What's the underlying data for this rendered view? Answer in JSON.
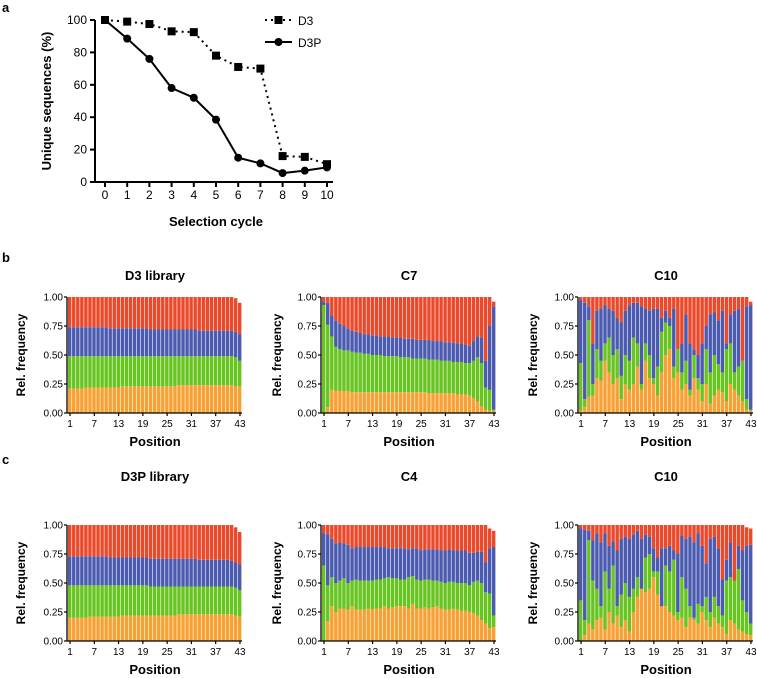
{
  "panel_labels": {
    "a": "a",
    "b": "b",
    "c": "c"
  },
  "chart_data": [
    {
      "type": "line",
      "panel": "a",
      "title": "",
      "xlabel": "Selection cycle",
      "ylabel": "Unique sequences (%)",
      "x": [
        0,
        1,
        2,
        3,
        4,
        5,
        6,
        7,
        8,
        9,
        10
      ],
      "xticks": [
        "0",
        "1",
        "2",
        "3",
        "4",
        "5",
        "6",
        "7",
        "8",
        "9",
        "10"
      ],
      "yticks": [
        "0",
        "20",
        "40",
        "60",
        "80",
        "100"
      ],
      "ylim": [
        0,
        100
      ],
      "legend_position": "top-right",
      "series": [
        {
          "name": "D3",
          "style": "dotted",
          "marker": "square",
          "values": [
            100,
            99,
            97.5,
            93,
            92.5,
            78,
            71,
            70,
            16,
            15.5,
            11
          ]
        },
        {
          "name": "D3P",
          "style": "solid",
          "marker": "circle",
          "values": [
            100,
            88.5,
            76,
            58,
            52,
            38.5,
            15,
            11.5,
            5.5,
            7,
            9
          ]
        }
      ]
    },
    {
      "type": "bar",
      "stacked": true,
      "panel": "b",
      "title": "D3 library",
      "xlabel": "Position",
      "ylabel": "Rel. frequency",
      "xticks": [
        "1",
        "7",
        "13",
        "19",
        "25",
        "31",
        "37",
        "43"
      ],
      "yticks": [
        "0.00",
        "0.25",
        "0.50",
        "0.75",
        "1.00"
      ],
      "ylim": [
        0,
        1
      ],
      "layers": [
        "orange",
        "green",
        "blue",
        "red"
      ],
      "orange_top": [
        0.21,
        0.21,
        0.21,
        0.21,
        0.22,
        0.22,
        0.22,
        0.22,
        0.22,
        0.22,
        0.22,
        0.22,
        0.22,
        0.23,
        0.23,
        0.23,
        0.23,
        0.23,
        0.23,
        0.23,
        0.23,
        0.23,
        0.23,
        0.23,
        0.23,
        0.23,
        0.23,
        0.24,
        0.24,
        0.24,
        0.24,
        0.24,
        0.24,
        0.24,
        0.24,
        0.24,
        0.24,
        0.24,
        0.24,
        0.24,
        0.24,
        0.23,
        0.23
      ],
      "green_top": [
        0.49,
        0.49,
        0.49,
        0.49,
        0.49,
        0.49,
        0.49,
        0.49,
        0.49,
        0.49,
        0.49,
        0.49,
        0.49,
        0.49,
        0.49,
        0.49,
        0.49,
        0.49,
        0.49,
        0.49,
        0.49,
        0.49,
        0.49,
        0.49,
        0.49,
        0.49,
        0.49,
        0.49,
        0.49,
        0.49,
        0.49,
        0.49,
        0.49,
        0.49,
        0.49,
        0.49,
        0.49,
        0.49,
        0.49,
        0.49,
        0.49,
        0.48,
        0.45
      ],
      "blue_top": [
        0.74,
        0.74,
        0.74,
        0.74,
        0.74,
        0.74,
        0.74,
        0.74,
        0.74,
        0.74,
        0.73,
        0.73,
        0.73,
        0.73,
        0.73,
        0.73,
        0.73,
        0.73,
        0.73,
        0.73,
        0.72,
        0.72,
        0.72,
        0.72,
        0.72,
        0.72,
        0.72,
        0.72,
        0.72,
        0.72,
        0.72,
        0.72,
        0.71,
        0.71,
        0.71,
        0.71,
        0.71,
        0.71,
        0.71,
        0.71,
        0.71,
        0.7,
        0.68
      ],
      "total": [
        1,
        1,
        1,
        1,
        1,
        1,
        1,
        1,
        1,
        1,
        1,
        1,
        1,
        1,
        1,
        1,
        1,
        1,
        1,
        1,
        1,
        1,
        1,
        1,
        1,
        1,
        1,
        1,
        1,
        1,
        1,
        1,
        1,
        1,
        1,
        1,
        1,
        1,
        1,
        1,
        1,
        0.99,
        0.95
      ]
    },
    {
      "type": "bar",
      "stacked": true,
      "panel": "b",
      "title": "C7",
      "xlabel": "Position",
      "ylabel": "Rel. frequency",
      "xticks": [
        "1",
        "7",
        "13",
        "19",
        "25",
        "31",
        "37",
        "43"
      ],
      "yticks": [
        "0.00",
        "0.25",
        "0.50",
        "0.75",
        "1.00"
      ],
      "ylim": [
        0,
        1
      ],
      "layers": [
        "orange",
        "green",
        "blue",
        "red"
      ],
      "orange_top": [
        0,
        0.05,
        0.2,
        0.19,
        0.19,
        0.19,
        0.19,
        0.18,
        0.18,
        0.18,
        0.18,
        0.18,
        0.18,
        0.18,
        0.18,
        0.18,
        0.18,
        0.18,
        0.18,
        0.18,
        0.18,
        0.18,
        0.18,
        0.18,
        0.18,
        0.18,
        0.17,
        0.17,
        0.17,
        0.17,
        0.17,
        0.17,
        0.17,
        0.16,
        0.16,
        0.16,
        0.15,
        0.13,
        0.1,
        0.06,
        0.03,
        0.02,
        0.02
      ],
      "green_top": [
        0.93,
        0.76,
        0.66,
        0.57,
        0.55,
        0.54,
        0.54,
        0.53,
        0.52,
        0.52,
        0.51,
        0.51,
        0.5,
        0.5,
        0.5,
        0.49,
        0.49,
        0.49,
        0.49,
        0.48,
        0.48,
        0.48,
        0.47,
        0.47,
        0.47,
        0.47,
        0.46,
        0.46,
        0.46,
        0.45,
        0.45,
        0.45,
        0.44,
        0.44,
        0.44,
        0.43,
        0.43,
        0.45,
        0.48,
        0.43,
        0.22,
        0.2,
        0.03
      ],
      "blue_top": [
        0.96,
        0.95,
        0.84,
        0.8,
        0.77,
        0.75,
        0.73,
        0.71,
        0.7,
        0.69,
        0.68,
        0.68,
        0.67,
        0.67,
        0.66,
        0.66,
        0.66,
        0.65,
        0.65,
        0.65,
        0.64,
        0.64,
        0.64,
        0.63,
        0.63,
        0.63,
        0.63,
        0.62,
        0.62,
        0.62,
        0.61,
        0.61,
        0.61,
        0.6,
        0.6,
        0.59,
        0.58,
        0.62,
        0.66,
        0.65,
        0.45,
        0.75,
        0.92
      ],
      "total": [
        1,
        1,
        1,
        1,
        1,
        1,
        1,
        1,
        1,
        1,
        1,
        1,
        1,
        1,
        1,
        1,
        1,
        1,
        1,
        1,
        1,
        1,
        1,
        1,
        1,
        1,
        1,
        1,
        1,
        1,
        1,
        1,
        1,
        1,
        1,
        1,
        1,
        1,
        1,
        1,
        1,
        1,
        0.96
      ]
    },
    {
      "type": "bar",
      "stacked": true,
      "panel": "b",
      "title": "C10",
      "xlabel": "Position",
      "ylabel": "Rel. frequency",
      "xticks": [
        "1",
        "7",
        "13",
        "19",
        "25",
        "31",
        "37",
        "43"
      ],
      "yticks": [
        "0.00",
        "0.25",
        "0.50",
        "0.75",
        "1.00"
      ],
      "ylim": [
        0,
        1
      ],
      "layers": [
        "orange",
        "green",
        "blue",
        "red"
      ],
      "orange_top": [
        0.02,
        0.05,
        0.14,
        0.15,
        0.3,
        0.28,
        0.45,
        0.35,
        0.25,
        0.3,
        0.12,
        0.25,
        0.2,
        0.25,
        0.4,
        0.2,
        0.45,
        0.3,
        0.25,
        0.15,
        0.35,
        0.5,
        0.55,
        0.3,
        0.35,
        0.2,
        0.25,
        0.15,
        0.3,
        0.2,
        0.1,
        0.25,
        0.08,
        0.15,
        0.2,
        0.18,
        0.1,
        0.25,
        0.2,
        0.15,
        0.1,
        0.03,
        0.02
      ],
      "green_top": [
        0.43,
        0.12,
        0.8,
        0.25,
        0.55,
        0.45,
        0.6,
        0.65,
        0.5,
        0.55,
        0.32,
        0.5,
        0.45,
        0.65,
        0.6,
        0.25,
        0.6,
        0.5,
        0.3,
        0.4,
        0.7,
        0.78,
        0.75,
        0.4,
        0.55,
        0.35,
        0.45,
        0.2,
        0.5,
        0.3,
        0.25,
        0.55,
        0.35,
        0.5,
        0.42,
        0.35,
        0.55,
        0.6,
        0.35,
        0.4,
        0.45,
        0.12,
        0.03
      ],
      "blue_top": [
        0.98,
        0.95,
        0.92,
        0.6,
        0.88,
        0.9,
        0.93,
        0.9,
        0.88,
        0.82,
        0.78,
        0.88,
        0.93,
        0.95,
        0.95,
        0.92,
        0.9,
        0.88,
        0.9,
        0.9,
        0.82,
        0.88,
        0.82,
        0.9,
        0.55,
        0.6,
        0.85,
        0.6,
        0.55,
        0.5,
        0.6,
        0.75,
        0.85,
        0.87,
        0.8,
        0.88,
        0.6,
        0.85,
        0.88,
        0.9,
        0.45,
        0.92,
        0.93
      ],
      "total": [
        1,
        1,
        1,
        1,
        1,
        1,
        1,
        1,
        1,
        1,
        1,
        1,
        1,
        1,
        1,
        1,
        1,
        1,
        1,
        1,
        1,
        1,
        1,
        1,
        1,
        1,
        1,
        1,
        1,
        1,
        1,
        1,
        1,
        1,
        1,
        1,
        1,
        1,
        1,
        1,
        1,
        1,
        0.96
      ]
    },
    {
      "type": "bar",
      "stacked": true,
      "panel": "c",
      "title": "D3P library",
      "xlabel": "Position",
      "ylabel": "Rel. frequency",
      "xticks": [
        "1",
        "7",
        "13",
        "19",
        "25",
        "31",
        "37",
        "43"
      ],
      "yticks": [
        "0.00",
        "0.25",
        "0.50",
        "0.75",
        "1.00"
      ],
      "ylim": [
        0,
        1
      ],
      "layers": [
        "orange",
        "green",
        "blue",
        "red"
      ],
      "orange_top": [
        0.2,
        0.2,
        0.2,
        0.2,
        0.2,
        0.21,
        0.21,
        0.21,
        0.21,
        0.21,
        0.21,
        0.21,
        0.21,
        0.22,
        0.22,
        0.22,
        0.22,
        0.22,
        0.22,
        0.22,
        0.22,
        0.22,
        0.22,
        0.22,
        0.22,
        0.22,
        0.22,
        0.23,
        0.23,
        0.23,
        0.23,
        0.23,
        0.23,
        0.23,
        0.23,
        0.23,
        0.23,
        0.23,
        0.23,
        0.23,
        0.23,
        0.22,
        0.21
      ],
      "green_top": [
        0.48,
        0.48,
        0.48,
        0.48,
        0.48,
        0.48,
        0.48,
        0.48,
        0.48,
        0.48,
        0.48,
        0.48,
        0.48,
        0.48,
        0.48,
        0.48,
        0.48,
        0.48,
        0.48,
        0.48,
        0.47,
        0.47,
        0.47,
        0.47,
        0.47,
        0.47,
        0.47,
        0.47,
        0.47,
        0.47,
        0.47,
        0.47,
        0.47,
        0.47,
        0.47,
        0.47,
        0.47,
        0.47,
        0.47,
        0.47,
        0.47,
        0.46,
        0.44
      ],
      "blue_top": [
        0.73,
        0.73,
        0.73,
        0.73,
        0.73,
        0.73,
        0.73,
        0.73,
        0.73,
        0.73,
        0.72,
        0.72,
        0.72,
        0.72,
        0.72,
        0.72,
        0.72,
        0.72,
        0.72,
        0.72,
        0.71,
        0.71,
        0.71,
        0.71,
        0.71,
        0.71,
        0.71,
        0.71,
        0.71,
        0.71,
        0.71,
        0.71,
        0.7,
        0.7,
        0.7,
        0.7,
        0.7,
        0.7,
        0.7,
        0.7,
        0.69,
        0.68,
        0.66
      ],
      "total": [
        1,
        1,
        1,
        1,
        1,
        1,
        1,
        1,
        1,
        1,
        1,
        1,
        1,
        1,
        1,
        1,
        1,
        1,
        1,
        1,
        1,
        1,
        1,
        1,
        1,
        1,
        1,
        1,
        1,
        1,
        1,
        1,
        1,
        1,
        1,
        1,
        1,
        1,
        1,
        1,
        1,
        0.98,
        0.94
      ]
    },
    {
      "type": "bar",
      "stacked": true,
      "panel": "c",
      "title": "C4",
      "xlabel": "Position",
      "ylabel": "Rel. frequency",
      "xticks": [
        "1",
        "7",
        "13",
        "19",
        "25",
        "31",
        "37",
        "43"
      ],
      "yticks": [
        "0.00",
        "0.25",
        "0.50",
        "0.75",
        "1.00"
      ],
      "ylim": [
        0,
        1
      ],
      "layers": [
        "orange",
        "green",
        "blue",
        "red"
      ],
      "orange_top": [
        0.0,
        0.17,
        0.3,
        0.25,
        0.28,
        0.28,
        0.27,
        0.3,
        0.27,
        0.27,
        0.27,
        0.28,
        0.27,
        0.28,
        0.28,
        0.3,
        0.28,
        0.29,
        0.3,
        0.3,
        0.3,
        0.28,
        0.32,
        0.28,
        0.28,
        0.29,
        0.28,
        0.29,
        0.3,
        0.28,
        0.27,
        0.27,
        0.28,
        0.27,
        0.26,
        0.26,
        0.25,
        0.24,
        0.22,
        0.18,
        0.15,
        0.11,
        0.12
      ],
      "green_top": [
        0.65,
        0.48,
        0.55,
        0.5,
        0.52,
        0.54,
        0.5,
        0.52,
        0.53,
        0.52,
        0.52,
        0.52,
        0.52,
        0.53,
        0.53,
        0.54,
        0.55,
        0.54,
        0.54,
        0.53,
        0.53,
        0.55,
        0.56,
        0.53,
        0.52,
        0.53,
        0.53,
        0.52,
        0.52,
        0.51,
        0.5,
        0.51,
        0.51,
        0.5,
        0.5,
        0.5,
        0.48,
        0.51,
        0.52,
        0.5,
        0.42,
        0.41,
        0.22
      ],
      "blue_top": [
        0.93,
        0.92,
        0.88,
        0.84,
        0.85,
        0.84,
        0.83,
        0.8,
        0.81,
        0.81,
        0.81,
        0.81,
        0.81,
        0.81,
        0.81,
        0.81,
        0.8,
        0.8,
        0.8,
        0.8,
        0.8,
        0.79,
        0.8,
        0.8,
        0.78,
        0.79,
        0.79,
        0.79,
        0.79,
        0.78,
        0.78,
        0.79,
        0.78,
        0.78,
        0.78,
        0.78,
        0.76,
        0.76,
        0.77,
        0.77,
        0.68,
        0.8,
        0.81
      ],
      "total": [
        1,
        1,
        1,
        1,
        1,
        1,
        1,
        1,
        1,
        1,
        1,
        1,
        1,
        1,
        1,
        1,
        1,
        1,
        1,
        1,
        1,
        1,
        1,
        1,
        1,
        1,
        1,
        1,
        1,
        1,
        1,
        1,
        1,
        1,
        1,
        1,
        1,
        1,
        1,
        1,
        1,
        0.97,
        0.95
      ]
    },
    {
      "type": "bar",
      "stacked": true,
      "panel": "c",
      "title": "C10",
      "xlabel": "Position",
      "ylabel": "Rel. frequency",
      "xticks": [
        "1",
        "7",
        "13",
        "19",
        "25",
        "31",
        "37",
        "43"
      ],
      "yticks": [
        "0.00",
        "0.25",
        "0.50",
        "0.75",
        "1.00"
      ],
      "ylim": [
        0,
        1
      ],
      "layers": [
        "orange",
        "green",
        "blue",
        "red"
      ],
      "orange_top": [
        0.0,
        0.05,
        0.15,
        0.1,
        0.18,
        0.2,
        0.1,
        0.25,
        0.15,
        0.22,
        0.12,
        0.18,
        0.08,
        0.25,
        0.38,
        0.45,
        0.42,
        0.45,
        0.55,
        0.4,
        0.35,
        0.3,
        0.25,
        0.22,
        0.18,
        0.2,
        0.12,
        0.2,
        0.18,
        0.15,
        0.25,
        0.18,
        0.12,
        0.2,
        0.15,
        0.12,
        0.06,
        0.18,
        0.15,
        0.1,
        0.08,
        0.06,
        0.05
      ],
      "green_top": [
        0.35,
        0.18,
        0.87,
        0.52,
        0.45,
        0.3,
        0.6,
        0.45,
        0.65,
        0.3,
        0.4,
        0.5,
        0.38,
        0.45,
        0.55,
        0.45,
        0.72,
        0.75,
        0.6,
        0.6,
        0.3,
        0.65,
        0.6,
        0.7,
        0.25,
        0.55,
        0.45,
        0.3,
        0.2,
        0.32,
        0.3,
        0.38,
        0.25,
        0.38,
        0.3,
        0.22,
        0.52,
        0.55,
        0.6,
        0.62,
        0.35,
        0.25,
        0.15
      ],
      "blue_top": [
        0.97,
        0.96,
        0.95,
        0.87,
        0.93,
        0.85,
        0.93,
        0.82,
        0.86,
        0.78,
        0.88,
        0.9,
        0.88,
        0.92,
        0.95,
        0.88,
        0.92,
        0.9,
        0.8,
        0.72,
        0.8,
        0.8,
        0.82,
        0.78,
        0.75,
        0.91,
        0.88,
        0.9,
        0.85,
        0.93,
        0.82,
        0.67,
        0.88,
        0.9,
        0.8,
        0.53,
        0.7,
        0.85,
        0.52,
        0.82,
        0.78,
        0.82,
        0.83
      ],
      "total": [
        1,
        1,
        1,
        1,
        1,
        1,
        1,
        1,
        1,
        1,
        1,
        1,
        1,
        1,
        1,
        1,
        1,
        1,
        1,
        1,
        1,
        1,
        1,
        1,
        1,
        1,
        1,
        1,
        1,
        1,
        1,
        1,
        1,
        1,
        1,
        1,
        1,
        1,
        1,
        1,
        1,
        0.98,
        0.97
      ]
    }
  ],
  "colors": {
    "orange": "#f7a135",
    "green": "#68c420",
    "blue": "#4b5bb0",
    "red": "#ea4a2c",
    "axis": "#000000"
  }
}
